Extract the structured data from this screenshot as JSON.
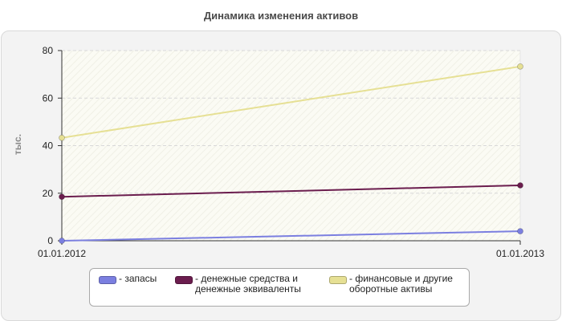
{
  "chart_data": {
    "type": "line",
    "title": "Динамика изменения активов",
    "ylabel": "тыс.",
    "xlabel": "",
    "x": [
      "01.01.2012",
      "01.01.2013"
    ],
    "ylim": [
      0,
      80
    ],
    "yticks": [
      "0",
      "20",
      "40",
      "60",
      "80"
    ],
    "grid": true,
    "legend_position": "bottom",
    "series": [
      {
        "name": "- запасы",
        "values": [
          0,
          4
        ],
        "color": "#7b7fe0"
      },
      {
        "name": "- денежные средства и\nденежные эквиваленты",
        "values": [
          18.5,
          23.3
        ],
        "color": "#6b1d4e"
      },
      {
        "name": "- финансовые и другие\nоборотные активы",
        "values": [
          43.3,
          73.3
        ],
        "color": "#e6e094"
      }
    ]
  }
}
